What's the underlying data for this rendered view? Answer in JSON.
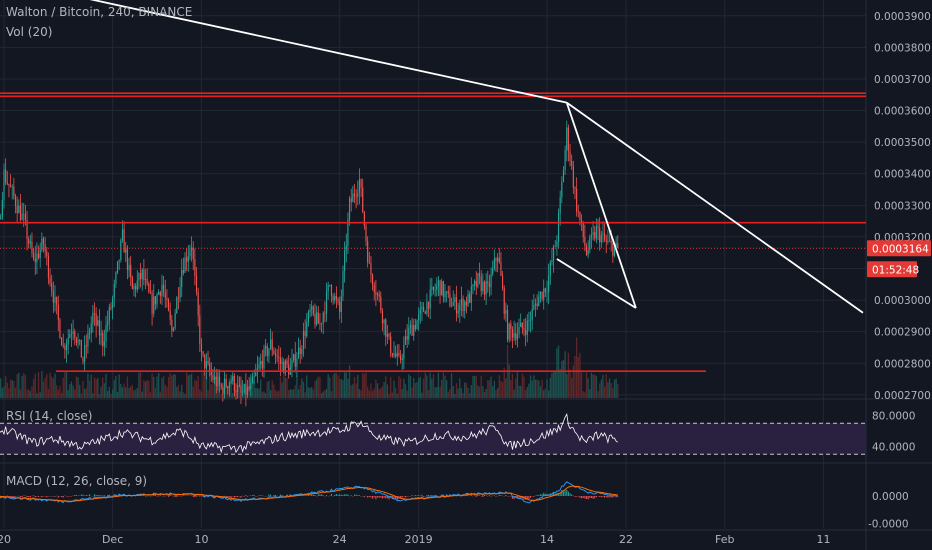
{
  "legend": {
    "symbol": "Walton / Bitcoin, 240, BINANCE",
    "vol": "Vol (20)",
    "rsi": "RSI (14, close)",
    "macd": "MACD (12, 26, close, 9)"
  },
  "chart_data": [
    {
      "type": "candlestick",
      "name": "price",
      "ylim": [
        0.000269,
        0.000395
      ],
      "y_ticks": [
        "0.0003900",
        "0.0003800",
        "0.0003700",
        "0.0003600",
        "0.0003500",
        "0.0003400",
        "0.0003300",
        "0.0003200",
        "0.0003000",
        "0.0002900",
        "0.0002800",
        "0.0002700"
      ],
      "x_ticks": [
        "20",
        "Dec",
        "10",
        "24",
        "2019",
        "14",
        "22",
        "Feb",
        "11"
      ],
      "last_price": "0.0003164",
      "countdown": "01:52:48",
      "horizontal_levels": [
        0.0003655,
        0.0003645,
        0.0003245,
        0.0002775
      ],
      "close_line": 0.0003164,
      "trendlines": [
        {
          "from": [
            "2018-11-07",
            0.00041
          ],
          "to": [
            "2019-01-16",
            0.0003625
          ]
        },
        {
          "from": [
            "2019-01-16",
            0.0003625
          ],
          "to": [
            "2019-02-15",
            0.000296
          ]
        },
        {
          "from": [
            "2019-01-16",
            0.0003625
          ],
          "to": [
            "2019-01-23",
            0.0002975
          ]
        },
        {
          "from": [
            "2019-01-15",
            0.000313
          ],
          "to": [
            "2019-01-23",
            0.0002975
          ]
        }
      ],
      "path": [
        [
          "2018-11-14",
          0.000335
        ],
        [
          "2018-11-15",
          0.000342
        ],
        [
          "2018-11-16",
          0.000305
        ],
        [
          "2018-11-18",
          0.000318
        ],
        [
          "2018-11-19",
          0.000307
        ],
        [
          "2018-11-20",
          0.00034
        ],
        [
          "2018-11-22",
          0.000325
        ],
        [
          "2018-11-23",
          0.000312
        ],
        [
          "2018-11-24",
          0.000318
        ],
        [
          "2018-11-26",
          0.000285
        ],
        [
          "2018-11-27",
          0.000292
        ],
        [
          "2018-11-28",
          0.000281
        ],
        [
          "2018-11-29",
          0.000295
        ],
        [
          "2018-11-30",
          0.000287
        ],
        [
          "2018-12-01",
          0.0003
        ],
        [
          "2018-12-02",
          0.00032
        ],
        [
          "2018-12-03",
          0.000303
        ],
        [
          "2018-12-04",
          0.000308
        ],
        [
          "2018-12-05",
          0.000298
        ],
        [
          "2018-12-06",
          0.000305
        ],
        [
          "2018-12-07",
          0.00029
        ],
        [
          "2018-12-08",
          0.00031
        ],
        [
          "2018-12-09",
          0.000318
        ],
        [
          "2018-12-10",
          0.000282
        ],
        [
          "2018-12-11",
          0.000276
        ],
        [
          "2018-12-12",
          0.000272
        ],
        [
          "2018-12-13",
          0.000275
        ],
        [
          "2018-12-14",
          0.00027
        ],
        [
          "2018-12-15",
          0.000272
        ],
        [
          "2018-12-16",
          0.00028
        ],
        [
          "2018-12-17",
          0.000286
        ],
        [
          "2018-12-18",
          0.00028
        ],
        [
          "2018-12-19",
          0.000278
        ],
        [
          "2018-12-20",
          0.000285
        ],
        [
          "2018-12-21",
          0.000296
        ],
        [
          "2018-12-22",
          0.000292
        ],
        [
          "2018-12-23",
          0.000305
        ],
        [
          "2018-12-24",
          0.000296
        ],
        [
          "2018-12-25",
          0.00033
        ],
        [
          "2018-12-26",
          0.000338
        ],
        [
          "2018-12-27",
          0.00031
        ],
        [
          "2018-12-28",
          0.0003
        ],
        [
          "2018-12-29",
          0.000286
        ],
        [
          "2018-12-30",
          0.00028
        ],
        [
          "2018-12-31",
          0.00029
        ],
        [
          "2019-01-01",
          0.000294
        ],
        [
          "2019-01-02",
          0.0003
        ],
        [
          "2019-01-03",
          0.000305
        ],
        [
          "2019-01-04",
          0.0003
        ],
        [
          "2019-01-05",
          0.000298
        ],
        [
          "2019-01-06",
          0.0003
        ],
        [
          "2019-01-07",
          0.000306
        ],
        [
          "2019-01-08",
          0.000303
        ],
        [
          "2019-01-09",
          0.000315
        ],
        [
          "2019-01-10",
          0.00029
        ],
        [
          "2019-01-11",
          0.00029
        ],
        [
          "2019-01-12",
          0.000292
        ],
        [
          "2019-01-13",
          0.0003
        ],
        [
          "2019-01-14",
          0.000305
        ],
        [
          "2019-01-15",
          0.00032
        ],
        [
          "2019-01-16",
          0.000353
        ],
        [
          "2019-01-17",
          0.00033
        ],
        [
          "2019-01-18",
          0.000315
        ],
        [
          "2019-01-19",
          0.000322
        ],
        [
          "2019-01-20",
          0.000318
        ],
        [
          "2019-01-21",
          0.000316
        ]
      ]
    },
    {
      "type": "bar",
      "name": "volume",
      "spikes": [
        [
          "2018-11-24",
          0.35
        ],
        [
          "2018-12-25",
          0.45
        ],
        [
          "2019-01-15",
          0.55
        ],
        [
          "2019-01-16",
          0.95
        ],
        [
          "2019-01-17",
          0.6
        ],
        [
          "2019-01-10",
          0.35
        ]
      ]
    },
    {
      "type": "line",
      "name": "rsi",
      "ylim": [
        20,
        100
      ],
      "y_ticks": [
        "80.0000",
        "40.0000"
      ],
      "bands": [
        70,
        30
      ],
      "path": [
        [
          "2018-11-14",
          48
        ],
        [
          "2018-11-17",
          42
        ],
        [
          "2018-11-20",
          62
        ],
        [
          "2018-11-23",
          45
        ],
        [
          "2018-11-25",
          50
        ],
        [
          "2018-11-28",
          40
        ],
        [
          "2018-12-02",
          58
        ],
        [
          "2018-12-05",
          48
        ],
        [
          "2018-12-08",
          60
        ],
        [
          "2018-12-10",
          40
        ],
        [
          "2018-12-14",
          38
        ],
        [
          "2018-12-18",
          52
        ],
        [
          "2018-12-21",
          58
        ],
        [
          "2018-12-24",
          60
        ],
        [
          "2018-12-26",
          72
        ],
        [
          "2018-12-28",
          50
        ],
        [
          "2018-12-31",
          45
        ],
        [
          "2019-01-03",
          55
        ],
        [
          "2019-01-06",
          52
        ],
        [
          "2019-01-09",
          65
        ],
        [
          "2019-01-10",
          40
        ],
        [
          "2019-01-13",
          50
        ],
        [
          "2019-01-15",
          62
        ],
        [
          "2019-01-16",
          76
        ],
        [
          "2019-01-17",
          55
        ],
        [
          "2019-01-18",
          45
        ],
        [
          "2019-01-19",
          55
        ],
        [
          "2019-01-21",
          48
        ]
      ]
    },
    {
      "type": "line",
      "name": "macd",
      "ylim": [
        -1.5e-05,
        1.5e-05
      ],
      "y_ticks": [
        "0.0000",
        "-0.0000"
      ],
      "path": [
        [
          "2018-11-14",
          1e-06
        ],
        [
          "2018-11-20",
          -5e-07
        ],
        [
          "2018-11-26",
          -2.5e-06
        ],
        [
          "2018-12-02",
          5e-07
        ],
        [
          "2018-12-09",
          1e-06
        ],
        [
          "2018-12-14",
          -2e-06
        ],
        [
          "2018-12-20",
          5e-07
        ],
        [
          "2018-12-26",
          4.5e-06
        ],
        [
          "2018-12-30",
          -2e-06
        ],
        [
          "2019-01-05",
          5e-07
        ],
        [
          "2019-01-10",
          1.5e-06
        ],
        [
          "2019-01-12",
          -3e-06
        ],
        [
          "2019-01-15",
          2e-06
        ],
        [
          "2019-01-16",
          6.5e-06
        ],
        [
          "2019-01-18",
          2e-06
        ],
        [
          "2019-01-21",
          0.0
        ]
      ]
    }
  ],
  "colors": {
    "background": "#131722",
    "grid": "#242733",
    "up": "#26a69a",
    "down": "#ef5350",
    "level": "#e91e1e",
    "trendline": "#ffffff",
    "rsi_line": "#ffffff",
    "rsi_fill": "#2a2040",
    "macd_line": "#2196f3",
    "signal_line": "#ff6d00",
    "badge": "#e53935",
    "axis_text": "#b2b5be"
  }
}
